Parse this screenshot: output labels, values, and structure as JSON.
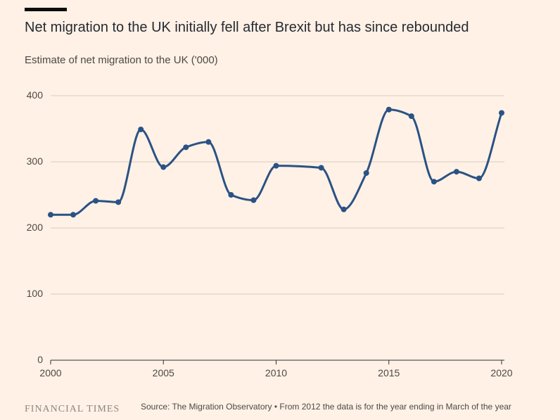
{
  "header": {
    "title": "Net migration to the UK initially fell after Brexit but has since rebounded",
    "subtitle": "Estimate of net migration to the UK ('000)"
  },
  "footer": {
    "logo": "FINANCIAL TIMES",
    "source": "Source: The Migration Observatory • From 2012 the data is for the year ending in March of the year"
  },
  "colors": {
    "background": "#fff1e5",
    "line": "#2a5285",
    "grid": "#d9cbbf"
  },
  "chart_data": {
    "type": "line",
    "title": "Net migration to the UK initially fell after Brexit but has since rebounded",
    "subtitle": "Estimate of net migration to the UK ('000)",
    "xlabel": "",
    "ylabel": "",
    "xlim": [
      2000,
      2020
    ],
    "ylim": [
      0,
      400
    ],
    "x_ticks": [
      "2000",
      "2005",
      "2010",
      "2015",
      "2020"
    ],
    "y_ticks": [
      "0",
      "100",
      "200",
      "300",
      "400"
    ],
    "grid": "horizontal",
    "x": [
      2000,
      2001,
      2002,
      2003,
      2004,
      2005,
      2006,
      2007,
      2008,
      2009,
      2010,
      2012,
      2013,
      2014,
      2015,
      2016,
      2017,
      2018,
      2019,
      2020
    ],
    "values": [
      220,
      220,
      241,
      239,
      349,
      292,
      322,
      330,
      250,
      242,
      294,
      291,
      228,
      283,
      379,
      369,
      270,
      285,
      275,
      374
    ]
  }
}
